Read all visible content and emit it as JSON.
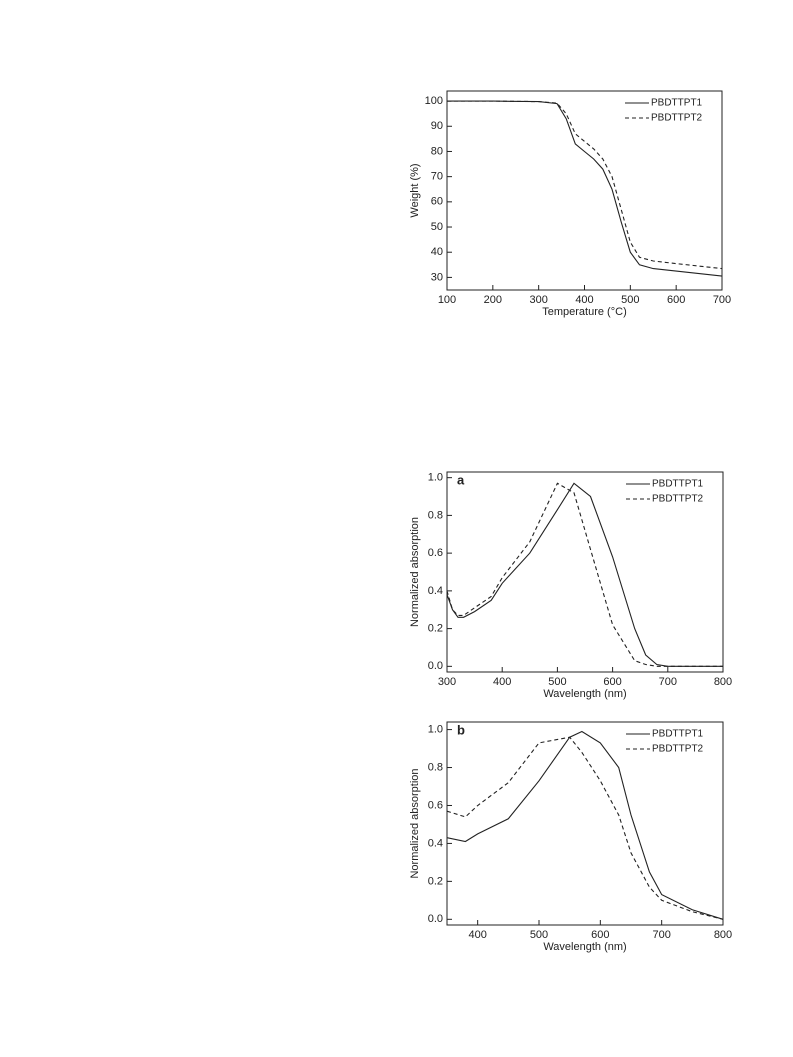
{
  "chart_data": [
    {
      "type": "line",
      "xlabel": "Temperature (°C)",
      "ylabel": "Weight (%)",
      "x": [
        100,
        200,
        300,
        340,
        360,
        380,
        400,
        420,
        440,
        460,
        480,
        500,
        520,
        550,
        600,
        650,
        700
      ],
      "series": [
        {
          "name": "PBDTTPT1",
          "color": "#222222",
          "line_style": "solid",
          "values": [
            100,
            100,
            99.8,
            99,
            93,
            83,
            80,
            77,
            73,
            65,
            52,
            40,
            35,
            33.5,
            32.5,
            31.5,
            30.5
          ]
        },
        {
          "name": "PBDTTPT2",
          "color": "#222222",
          "line_style": "dashed",
          "values": [
            100,
            100,
            99.8,
            99.2,
            95,
            87,
            84,
            81,
            77,
            70,
            57,
            44,
            38,
            36.5,
            35.5,
            34.5,
            33.5
          ]
        }
      ],
      "xlim": [
        100,
        700
      ],
      "xticks": [
        100,
        200,
        300,
        400,
        500,
        600,
        700
      ],
      "ylim": [
        25,
        104
      ],
      "yticks": [
        30,
        40,
        50,
        60,
        70,
        80,
        90,
        100
      ],
      "legend": "upper right"
    },
    {
      "type": "line",
      "panel_label": "a",
      "xlabel": "Wavelength (nm)",
      "ylabel": "Normalized absorption",
      "x": [
        300,
        310,
        320,
        330,
        350,
        380,
        400,
        450,
        500,
        530,
        560,
        600,
        640,
        660,
        680,
        700,
        800
      ],
      "series": [
        {
          "name": "PBDTTPT1",
          "color": "#222222",
          "line_style": "solid",
          "values": [
            0.38,
            0.3,
            0.26,
            0.26,
            0.29,
            0.35,
            0.44,
            0.6,
            0.83,
            0.97,
            0.9,
            0.58,
            0.2,
            0.06,
            0.01,
            0,
            0
          ]
        },
        {
          "name": "PBDTTPT2",
          "color": "#222222",
          "line_style": "dashed",
          "values": [
            0.4,
            0.3,
            0.27,
            0.27,
            0.31,
            0.37,
            0.47,
            0.66,
            0.97,
            0.92,
            0.62,
            0.22,
            0.03,
            0.01,
            0,
            0,
            0
          ]
        }
      ],
      "xlim": [
        300,
        800
      ],
      "xticks": [
        300,
        400,
        500,
        600,
        700,
        800
      ],
      "ylim": [
        -0.03,
        1.03
      ],
      "yticks": [
        {
          "value": 0,
          "label": "0.0"
        },
        0.2,
        0.4,
        0.6,
        0.8,
        {
          "value": 1,
          "label": "1.0"
        }
      ],
      "legend": "upper right"
    },
    {
      "type": "line",
      "panel_label": "b",
      "xlabel": "Wavelength (nm)",
      "ylabel": "Normalized absorption",
      "x": [
        350,
        380,
        400,
        450,
        500,
        550,
        570,
        600,
        630,
        650,
        680,
        700,
        750,
        800
      ],
      "series": [
        {
          "name": "PBDTTPT1",
          "color": "#222222",
          "line_style": "solid",
          "values": [
            0.43,
            0.41,
            0.45,
            0.53,
            0.73,
            0.96,
            0.99,
            0.93,
            0.8,
            0.55,
            0.25,
            0.13,
            0.05,
            0
          ]
        },
        {
          "name": "PBDTTPT2",
          "color": "#222222",
          "line_style": "dashed",
          "values": [
            0.57,
            0.54,
            0.6,
            0.72,
            0.93,
            0.96,
            0.88,
            0.73,
            0.55,
            0.35,
            0.17,
            0.1,
            0.04,
            0
          ]
        }
      ],
      "xlim": [
        350,
        800
      ],
      "xticks": [
        400,
        500,
        600,
        700,
        800
      ],
      "ylim": [
        -0.03,
        1.04
      ],
      "yticks": [
        {
          "value": 0,
          "label": "0.0"
        },
        0.2,
        0.4,
        0.6,
        0.8,
        {
          "value": 1,
          "label": "1.0"
        }
      ],
      "legend": "upper right"
    }
  ]
}
